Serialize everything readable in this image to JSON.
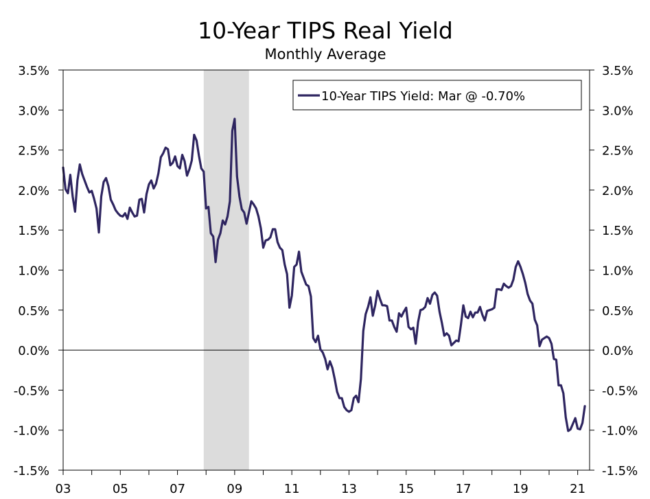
{
  "chart_data": {
    "type": "line",
    "title": "10-Year TIPS Real Yield",
    "subtitle": "Monthly Average",
    "xlabel": "",
    "ylabel": "",
    "x_ticks": [
      "03",
      "05",
      "07",
      "09",
      "11",
      "13",
      "15",
      "17",
      "19",
      "21"
    ],
    "xlim": [
      2003.0,
      2021.417
    ],
    "ylim": [
      -1.5,
      3.5
    ],
    "y_ticks": [
      "-1.5%",
      "-1.0%",
      "-0.5%",
      "0.0%",
      "0.5%",
      "1.0%",
      "1.5%",
      "2.0%",
      "2.5%",
      "3.0%",
      "3.5%"
    ],
    "y_tick_values": [
      -1.5,
      -1.0,
      -0.5,
      0.0,
      0.5,
      1.0,
      1.5,
      2.0,
      2.5,
      3.0,
      3.5
    ],
    "legend": "top-right",
    "grid": false,
    "recession_band": {
      "start": 2007.917,
      "end": 2009.5
    },
    "series": [
      {
        "name": "10-Year TIPS Yield: Mar @ -0.70%",
        "color": "#2e2560",
        "points": [
          [
            2003.0,
            2.28
          ],
          [
            2003.083,
            2.01
          ],
          [
            2003.167,
            1.96
          ],
          [
            2003.25,
            2.19
          ],
          [
            2003.333,
            1.92
          ],
          [
            2003.417,
            1.73
          ],
          [
            2003.5,
            2.12
          ],
          [
            2003.583,
            2.32
          ],
          [
            2003.667,
            2.2
          ],
          [
            2003.75,
            2.12
          ],
          [
            2003.833,
            2.04
          ],
          [
            2003.917,
            1.97
          ],
          [
            2004.0,
            1.99
          ],
          [
            2004.083,
            1.89
          ],
          [
            2004.167,
            1.77
          ],
          [
            2004.25,
            1.47
          ],
          [
            2004.333,
            1.92
          ],
          [
            2004.417,
            2.1
          ],
          [
            2004.5,
            2.15
          ],
          [
            2004.583,
            2.05
          ],
          [
            2004.667,
            1.88
          ],
          [
            2004.75,
            1.82
          ],
          [
            2004.833,
            1.75
          ],
          [
            2004.917,
            1.71
          ],
          [
            2005.0,
            1.68
          ],
          [
            2005.083,
            1.67
          ],
          [
            2005.167,
            1.71
          ],
          [
            2005.25,
            1.64
          ],
          [
            2005.333,
            1.78
          ],
          [
            2005.417,
            1.72
          ],
          [
            2005.5,
            1.67
          ],
          [
            2005.583,
            1.68
          ],
          [
            2005.667,
            1.88
          ],
          [
            2005.75,
            1.89
          ],
          [
            2005.833,
            1.72
          ],
          [
            2005.917,
            1.95
          ],
          [
            2006.0,
            2.07
          ],
          [
            2006.083,
            2.12
          ],
          [
            2006.167,
            2.02
          ],
          [
            2006.25,
            2.08
          ],
          [
            2006.333,
            2.21
          ],
          [
            2006.417,
            2.41
          ],
          [
            2006.5,
            2.46
          ],
          [
            2006.583,
            2.53
          ],
          [
            2006.667,
            2.51
          ],
          [
            2006.75,
            2.31
          ],
          [
            2006.833,
            2.34
          ],
          [
            2006.917,
            2.42
          ],
          [
            2007.0,
            2.3
          ],
          [
            2007.083,
            2.27
          ],
          [
            2007.167,
            2.44
          ],
          [
            2007.25,
            2.36
          ],
          [
            2007.333,
            2.18
          ],
          [
            2007.417,
            2.26
          ],
          [
            2007.5,
            2.37
          ],
          [
            2007.583,
            2.69
          ],
          [
            2007.667,
            2.62
          ],
          [
            2007.75,
            2.43
          ],
          [
            2007.833,
            2.27
          ],
          [
            2007.917,
            2.23
          ],
          [
            2008.0,
            1.77
          ],
          [
            2008.083,
            1.79
          ],
          [
            2008.167,
            1.46
          ],
          [
            2008.25,
            1.42
          ],
          [
            2008.333,
            1.1
          ],
          [
            2008.417,
            1.38
          ],
          [
            2008.5,
            1.46
          ],
          [
            2008.583,
            1.62
          ],
          [
            2008.667,
            1.57
          ],
          [
            2008.75,
            1.67
          ],
          [
            2008.833,
            1.86
          ],
          [
            2008.917,
            2.74
          ],
          [
            2009.0,
            2.89
          ],
          [
            2009.083,
            2.17
          ],
          [
            2009.167,
            1.92
          ],
          [
            2009.25,
            1.76
          ],
          [
            2009.333,
            1.72
          ],
          [
            2009.417,
            1.58
          ],
          [
            2009.5,
            1.72
          ],
          [
            2009.583,
            1.86
          ],
          [
            2009.667,
            1.82
          ],
          [
            2009.75,
            1.77
          ],
          [
            2009.833,
            1.67
          ],
          [
            2009.917,
            1.52
          ],
          [
            2010.0,
            1.28
          ],
          [
            2010.083,
            1.37
          ],
          [
            2010.167,
            1.38
          ],
          [
            2010.25,
            1.41
          ],
          [
            2010.333,
            1.51
          ],
          [
            2010.417,
            1.51
          ],
          [
            2010.5,
            1.35
          ],
          [
            2010.583,
            1.28
          ],
          [
            2010.667,
            1.25
          ],
          [
            2010.75,
            1.07
          ],
          [
            2010.833,
            0.95
          ],
          [
            2010.917,
            0.53
          ],
          [
            2011.0,
            0.68
          ],
          [
            2011.083,
            1.04
          ],
          [
            2011.167,
            1.07
          ],
          [
            2011.25,
            1.23
          ],
          [
            2011.333,
            0.98
          ],
          [
            2011.417,
            0.9
          ],
          [
            2011.5,
            0.82
          ],
          [
            2011.583,
            0.8
          ],
          [
            2011.667,
            0.67
          ],
          [
            2011.75,
            0.15
          ],
          [
            2011.833,
            0.1
          ],
          [
            2011.917,
            0.18
          ],
          [
            2012.0,
            0.01
          ],
          [
            2012.083,
            -0.03
          ],
          [
            2012.167,
            -0.11
          ],
          [
            2012.25,
            -0.24
          ],
          [
            2012.333,
            -0.14
          ],
          [
            2012.417,
            -0.22
          ],
          [
            2012.5,
            -0.36
          ],
          [
            2012.583,
            -0.52
          ],
          [
            2012.667,
            -0.6
          ],
          [
            2012.75,
            -0.6
          ],
          [
            2012.833,
            -0.71
          ],
          [
            2012.917,
            -0.75
          ],
          [
            2013.0,
            -0.77
          ],
          [
            2013.083,
            -0.75
          ],
          [
            2013.167,
            -0.6
          ],
          [
            2013.25,
            -0.57
          ],
          [
            2013.333,
            -0.65
          ],
          [
            2013.417,
            -0.36
          ],
          [
            2013.5,
            0.24
          ],
          [
            2013.583,
            0.45
          ],
          [
            2013.667,
            0.54
          ],
          [
            2013.75,
            0.66
          ],
          [
            2013.833,
            0.43
          ],
          [
            2013.917,
            0.56
          ],
          [
            2014.0,
            0.74
          ],
          [
            2014.083,
            0.64
          ],
          [
            2014.167,
            0.56
          ],
          [
            2014.25,
            0.56
          ],
          [
            2014.333,
            0.55
          ],
          [
            2014.417,
            0.37
          ],
          [
            2014.5,
            0.37
          ],
          [
            2014.583,
            0.29
          ],
          [
            2014.667,
            0.23
          ],
          [
            2014.75,
            0.46
          ],
          [
            2014.833,
            0.42
          ],
          [
            2014.917,
            0.48
          ],
          [
            2015.0,
            0.53
          ],
          [
            2015.083,
            0.29
          ],
          [
            2015.167,
            0.26
          ],
          [
            2015.25,
            0.28
          ],
          [
            2015.333,
            0.08
          ],
          [
            2015.417,
            0.35
          ],
          [
            2015.5,
            0.5
          ],
          [
            2015.583,
            0.51
          ],
          [
            2015.667,
            0.54
          ],
          [
            2015.75,
            0.65
          ],
          [
            2015.833,
            0.58
          ],
          [
            2015.917,
            0.69
          ],
          [
            2016.0,
            0.72
          ],
          [
            2016.083,
            0.68
          ],
          [
            2016.167,
            0.48
          ],
          [
            2016.25,
            0.34
          ],
          [
            2016.333,
            0.18
          ],
          [
            2016.417,
            0.21
          ],
          [
            2016.5,
            0.18
          ],
          [
            2016.583,
            0.06
          ],
          [
            2016.667,
            0.09
          ],
          [
            2016.75,
            0.12
          ],
          [
            2016.833,
            0.11
          ],
          [
            2016.917,
            0.32
          ],
          [
            2017.0,
            0.56
          ],
          [
            2017.083,
            0.42
          ],
          [
            2017.167,
            0.4
          ],
          [
            2017.25,
            0.48
          ],
          [
            2017.333,
            0.41
          ],
          [
            2017.417,
            0.47
          ],
          [
            2017.5,
            0.47
          ],
          [
            2017.583,
            0.54
          ],
          [
            2017.667,
            0.44
          ],
          [
            2017.75,
            0.37
          ],
          [
            2017.833,
            0.49
          ],
          [
            2017.917,
            0.5
          ],
          [
            2018.0,
            0.51
          ],
          [
            2018.083,
            0.53
          ],
          [
            2018.167,
            0.76
          ],
          [
            2018.25,
            0.76
          ],
          [
            2018.333,
            0.75
          ],
          [
            2018.417,
            0.83
          ],
          [
            2018.5,
            0.8
          ],
          [
            2018.583,
            0.78
          ],
          [
            2018.667,
            0.8
          ],
          [
            2018.75,
            0.88
          ],
          [
            2018.833,
            1.04
          ],
          [
            2018.917,
            1.11
          ],
          [
            2019.0,
            1.04
          ],
          [
            2019.083,
            0.95
          ],
          [
            2019.167,
            0.84
          ],
          [
            2019.25,
            0.7
          ],
          [
            2019.333,
            0.62
          ],
          [
            2019.417,
            0.58
          ],
          [
            2019.5,
            0.38
          ],
          [
            2019.583,
            0.31
          ],
          [
            2019.667,
            0.05
          ],
          [
            2019.75,
            0.13
          ],
          [
            2019.833,
            0.15
          ],
          [
            2019.917,
            0.17
          ],
          [
            2020.0,
            0.15
          ],
          [
            2020.083,
            0.08
          ],
          [
            2020.167,
            -0.11
          ],
          [
            2020.25,
            -0.12
          ],
          [
            2020.333,
            -0.44
          ],
          [
            2020.417,
            -0.44
          ],
          [
            2020.5,
            -0.54
          ],
          [
            2020.583,
            -0.84
          ],
          [
            2020.667,
            -1.01
          ],
          [
            2020.75,
            -0.99
          ],
          [
            2020.833,
            -0.92
          ],
          [
            2020.917,
            -0.85
          ],
          [
            2021.0,
            -0.98
          ],
          [
            2021.083,
            -0.99
          ],
          [
            2021.167,
            -0.91
          ],
          [
            2021.25,
            -0.7
          ]
        ]
      }
    ]
  }
}
